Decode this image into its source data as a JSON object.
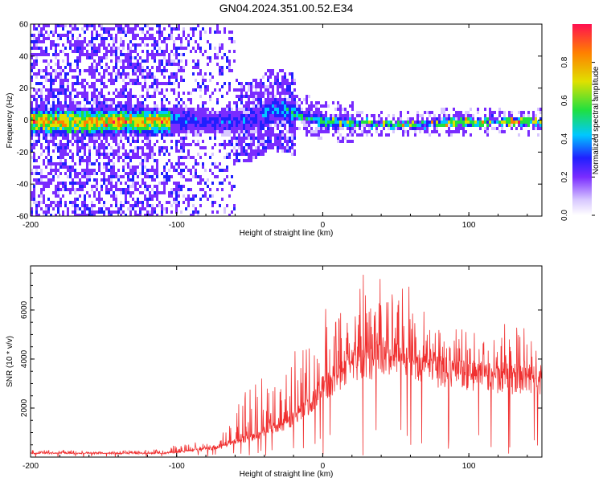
{
  "title": "GN04.2024.351.00.52.E34",
  "chart_data": [
    {
      "type": "heatmap",
      "xlabel": "Height of straight line (km)",
      "ylabel": "Frequency (Hz)",
      "xlim": [
        -200,
        150
      ],
      "ylim": [
        -60,
        60
      ],
      "x_ticks": [
        -200,
        -100,
        0,
        100
      ],
      "y_ticks": [
        -60,
        -40,
        -20,
        0,
        20,
        40,
        60
      ],
      "colorbar": {
        "label": "Normalized spectral amplitude",
        "range": [
          0,
          1
        ],
        "ticks": [
          "0.0",
          "0.2",
          "0.4",
          "0.6",
          "0.8"
        ],
        "colors": [
          "#ffffff",
          "#d8c8ff",
          "#7a2cff",
          "#2020ff",
          "#00c8ff",
          "#20e040",
          "#e0e000",
          "#ff8000",
          "#ff1050"
        ]
      },
      "ridge": {
        "description_points": [
          {
            "x": -105,
            "freq": 2,
            "amp": 0.4
          },
          {
            "x": -80,
            "freq": 0,
            "amp": 0.3
          },
          {
            "x": -50,
            "freq": 0,
            "amp": 0.3
          },
          {
            "x": -35,
            "freq": 8,
            "amp": 0.4
          },
          {
            "x": -20,
            "freq": 5,
            "amp": 0.5
          },
          {
            "x": 0,
            "freq": 0,
            "amp": 0.6
          },
          {
            "x": 50,
            "freq": -2,
            "amp": 0.7
          },
          {
            "x": 100,
            "freq": 0,
            "amp": 0.9
          },
          {
            "x": 150,
            "freq": 0,
            "amp": 0.9
          }
        ]
      }
    },
    {
      "type": "line",
      "xlabel": "Height of straight line (km)",
      "ylabel": "SNR (10 * v/v)",
      "xlim": [
        -200,
        150
      ],
      "ylim": [
        0,
        7800
      ],
      "x_ticks": [
        -200,
        -100,
        0,
        100
      ],
      "y_ticks": [
        2000,
        4000,
        6000
      ],
      "series": [
        {
          "color": "#f03030",
          "envelope": [
            {
              "x": -200,
              "base": 150,
              "peak": 300
            },
            {
              "x": -150,
              "base": 150,
              "peak": 250
            },
            {
              "x": -110,
              "base": 150,
              "peak": 350
            },
            {
              "x": -90,
              "base": 250,
              "peak": 700
            },
            {
              "x": -70,
              "base": 400,
              "peak": 900
            },
            {
              "x": -50,
              "base": 800,
              "peak": 3600
            },
            {
              "x": -30,
              "base": 1200,
              "peak": 3400
            },
            {
              "x": -10,
              "base": 2000,
              "peak": 5000
            },
            {
              "x": 0,
              "base": 2800,
              "peak": 6100
            },
            {
              "x": 20,
              "base": 3800,
              "peak": 7800
            },
            {
              "x": 40,
              "base": 4000,
              "peak": 7400
            },
            {
              "x": 60,
              "base": 3800,
              "peak": 7000
            },
            {
              "x": 80,
              "base": 3500,
              "peak": 5600
            },
            {
              "x": 100,
              "base": 3300,
              "peak": 5200
            },
            {
              "x": 130,
              "base": 3200,
              "peak": 5500
            },
            {
              "x": 150,
              "base": 3200,
              "peak": 4500
            }
          ]
        }
      ]
    }
  ]
}
